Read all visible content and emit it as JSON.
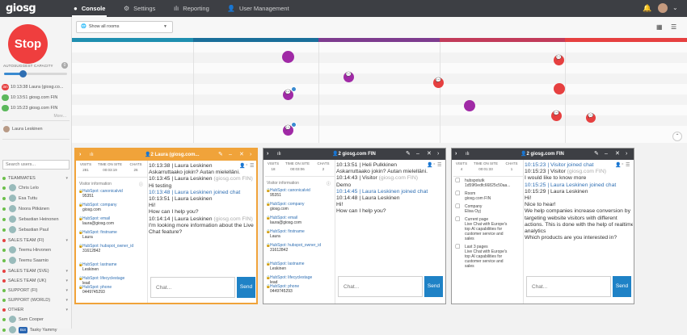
{
  "app": {
    "logo": "giosg"
  },
  "nav": {
    "tabs": [
      {
        "label": "Console",
        "icon": "console-icon"
      },
      {
        "label": "Settings",
        "icon": "gear-icon"
      },
      {
        "label": "Reporting",
        "icon": "bar-chart-icon"
      },
      {
        "label": "User Management",
        "icon": "users-icon"
      }
    ]
  },
  "sidebar": {
    "stop_label": "Stop",
    "capacity_label": "AUTOSUGGEST CAPACITY",
    "capacity_count": "0",
    "capacity_level": 0.3,
    "queue": [
      {
        "badge": "3m",
        "text": "10:13:38 Laura (giosg.co...",
        "color": "#e64040"
      },
      {
        "badge": "...",
        "text": "10:13:51 giosg.com FIN",
        "color": "#5cb85c"
      },
      {
        "badge": "...",
        "text": "10:15:23 giosg.com FIN",
        "color": "#5cb85c"
      }
    ],
    "more_label": "More...",
    "current_user": "Laura Leskinen",
    "search_placeholder": "Search users...",
    "groups": [
      {
        "type": "group",
        "label": "TEAMMATES",
        "color": "#6bbf4a"
      },
      {
        "type": "user",
        "label": "Chris Lelo"
      },
      {
        "type": "user",
        "label": "Esa Tuttu"
      },
      {
        "type": "user",
        "label": "Noora Pitkänen"
      },
      {
        "type": "user",
        "label": "Sebastian Heinonen"
      },
      {
        "type": "user",
        "label": "Sebastian Paul"
      },
      {
        "type": "group",
        "label": "SALES TEAM (FI)",
        "color": "#e64040"
      },
      {
        "type": "user",
        "label": "Teemu Hirvonen"
      },
      {
        "type": "user",
        "label": "Teemu Saarnio"
      },
      {
        "type": "group",
        "label": "SALES TEAM (SVE)",
        "color": "#e64040"
      },
      {
        "type": "group",
        "label": "SALES TEAM (UK)",
        "color": "#e64040"
      },
      {
        "type": "group",
        "label": "SUPPORT (FI)",
        "color": "#6bbf4a"
      },
      {
        "type": "group",
        "label": "SUPPORT (WORLD)",
        "color": "#6bbf4a"
      },
      {
        "type": "group",
        "label": "OTHER",
        "color": "#e64040"
      },
      {
        "type": "user",
        "label": "Sam Cooper"
      },
      {
        "type": "bot",
        "label": "Tasky Yammy",
        "bot": "Bot"
      }
    ]
  },
  "toolbar": {
    "room_select": "Show all rooms"
  },
  "timeline": {
    "bar_colors": [
      "#1f8fb0",
      "#1a6f9a",
      "#7e3c8f",
      "#c23b5a",
      "#e64040"
    ]
  },
  "chats": [
    {
      "title": "Laura (giosg.com...",
      "count": "2",
      "visits": "281",
      "time_on_site": "00:03:19",
      "chats_count": "26",
      "visitor_label": "Visitor information",
      "visitor_fields": [
        {
          "key": "HubSpot: canonicalvid",
          "value": "95351"
        },
        {
          "key": "HubSpot: company",
          "value": "giosg.com"
        },
        {
          "key": "HubSpot: email",
          "value": "laura@giosg.com"
        },
        {
          "key": "HubSpot: firstname",
          "value": "Laura"
        },
        {
          "key": "HubSpot: hubspot_owner_id",
          "value": "31612842"
        },
        {
          "key": "HubSpot: lastname",
          "value": "Leskinen"
        },
        {
          "key": "HubSpot: lifecyclestage",
          "value": "lead"
        },
        {
          "key": "HubSpot: phone",
          "value": "0449745293"
        }
      ],
      "messages": [
        {
          "text": "10:13:38 | Laura Leskinen",
          "style": ""
        },
        {
          "text": "Askarruttaako jokin? Autan mielelläni.",
          "style": ""
        },
        {
          "text": "10:13:45 | Laura Leskinen (giosg.com FIN)",
          "style": ""
        },
        {
          "text": "Hi testing",
          "style": ""
        },
        {
          "text": "10:13:48 | Laura Leskinen joined chat",
          "style": "sys"
        },
        {
          "text": "10:13:51 | Laura Leskinen",
          "style": ""
        },
        {
          "text": "Hi!",
          "style": ""
        },
        {
          "text": "How can I help you?",
          "style": ""
        },
        {
          "text": "10:14:14 | Laura Leskinen (giosg.com FIN)",
          "style": ""
        },
        {
          "text": "I'm looking more information about the Live",
          "style": ""
        },
        {
          "text": "Chat feature?",
          "style": ""
        }
      ],
      "input_placeholder": "Chat...",
      "send": "Send"
    },
    {
      "title": "giosg.com FIN",
      "count": "2",
      "visits": "18",
      "time_on_site": "00:03:06",
      "chats_count": "2",
      "visitor_label": "Visitor information",
      "visitor_fields": [
        {
          "key": "HubSpot: canonicalvid",
          "value": "95351"
        },
        {
          "key": "HubSpot: company",
          "value": "giosg.com"
        },
        {
          "key": "HubSpot: email",
          "value": "laura@giosg.com"
        },
        {
          "key": "HubSpot: firstname",
          "value": "Laura"
        },
        {
          "key": "HubSpot: hubspot_owner_id",
          "value": "31612842"
        },
        {
          "key": "HubSpot: lastname",
          "value": "Leskinen"
        },
        {
          "key": "HubSpot: lifecyclestage",
          "value": "lead"
        },
        {
          "key": "HubSpot: phone",
          "value": "0449745293"
        }
      ],
      "messages": [
        {
          "text": "10:13:51 | Heli Pulkkinen",
          "style": ""
        },
        {
          "text": "Askarruttaako jokin? Autan mielelläni.",
          "style": ""
        },
        {
          "text": "10:14:43 | Visitor (giosg.com FIN)",
          "style": ""
        },
        {
          "text": "Demo",
          "style": ""
        },
        {
          "text": "10:14:45 | Laura Leskinen joined chat",
          "style": "sys"
        },
        {
          "text": "10:14:48 | Laura Leskinen",
          "style": ""
        },
        {
          "text": "Hi!",
          "style": ""
        },
        {
          "text": "How can I help you?",
          "style": ""
        }
      ],
      "input_placeholder": "Chat...",
      "send": "Send"
    },
    {
      "title": "giosg.com FIN",
      "count": "2",
      "visits": "4",
      "time_on_site": "00:01:33",
      "chats_count": "1",
      "info": [
        {
          "icon": "tag-icon",
          "lines": [
            "hubspotutk",
            "1d59f0edfc66825c50aa..."
          ]
        },
        {
          "icon": "room-icon",
          "lines": [
            "Room",
            "giosg.com FIN"
          ]
        },
        {
          "icon": "company-icon",
          "lines": [
            "Company",
            "Elisa Oyj"
          ]
        },
        {
          "icon": "page-icon",
          "lines": [
            "Current page",
            "Live Chat with Europe's",
            "top AI capabilities for",
            "customer service and",
            "sales"
          ]
        },
        {
          "icon": "pages-icon",
          "lines": [
            "Last 3 pages",
            "Live Chat with Europe's",
            "top AI capabilities for",
            "customer service and",
            "sales"
          ]
        }
      ],
      "messages": [
        {
          "text": "10:15:23 | Visitor joined chat",
          "style": "sys"
        },
        {
          "text": "10:15:23 | Visitor (giosg.com FIN)",
          "style": ""
        },
        {
          "text": "I would like to know more",
          "style": ""
        },
        {
          "text": "10:15:25 | Laura Leskinen joined chat",
          "style": "sys"
        },
        {
          "text": "10:15:29 | Laura Leskinen",
          "style": ""
        },
        {
          "text": "Hi!",
          "style": ""
        },
        {
          "text": "Nice to hear!",
          "style": ""
        },
        {
          "text": "We help companies increase conversion by",
          "style": ""
        },
        {
          "text": "targeting website visitors with different",
          "style": ""
        },
        {
          "text": "actions. This is done with the help of realtime",
          "style": ""
        },
        {
          "text": "analytics",
          "style": ""
        },
        {
          "text": "Which products are you interested in?",
          "style": ""
        }
      ],
      "input_placeholder": "Chat...",
      "send": "Send"
    }
  ],
  "stats_labels": {
    "visits": "VISITS",
    "time": "TIME ON SITE",
    "chats": "CHATS"
  }
}
